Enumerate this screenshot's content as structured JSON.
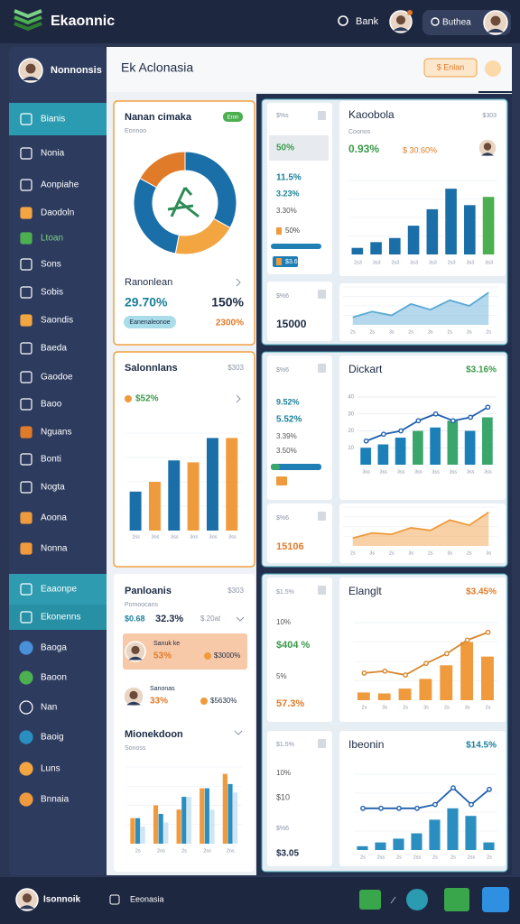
{
  "topbar": {
    "logo": "Ekaonnic",
    "search": "Bank",
    "account": "Buthea"
  },
  "sidebar": {
    "profile": "Nonnonsis",
    "items": [
      "Bianis",
      "Nonia",
      "Aonpiahe",
      "Daodoln",
      "Ltoan",
      "Sons",
      "Sobis",
      "Saondis",
      "Baeda",
      "Gaodoe",
      "Baoo",
      "Nguans",
      "Bonti",
      "Nogta",
      "Aoona",
      "Nonna"
    ],
    "section": [
      "Eaaonpe",
      "Ekonenns"
    ],
    "more": [
      "Baoga",
      "Baoon",
      "Nan",
      "Baoig",
      "Luns",
      "Bnnaia"
    ]
  },
  "header": {
    "title": "Ek Aclonasia",
    "button": "$ Enlan"
  },
  "donut_card": {
    "title": "Nanan cimaka",
    "badge": "Eron",
    "subtitle": "Eonnoo",
    "chart": {
      "type": "donut",
      "values": [
        33,
        20,
        30,
        17
      ],
      "colors": [
        "#1b6fa8",
        "#f2a541",
        "#1b6fa8",
        "#e07b2a"
      ]
    },
    "label": "Ranonlean",
    "stat1": "29.70%",
    "stat2": "150%",
    "pill": "Eanenaleonoe",
    "stat3": "2300%"
  },
  "bar_card": {
    "title": "Salonnlans",
    "corner": "$303",
    "stat": "$52%",
    "chart": {
      "type": "bar",
      "categories": [
        "2ss",
        "3os",
        "3ss",
        "3os",
        "3os",
        "3ss"
      ],
      "series": [
        {
          "style": "bar",
          "values": [
            40,
            50,
            72,
            70,
            95,
            95
          ],
          "colors": [
            "#1b6fa8",
            "#ef9a3c",
            "#1b6fa8",
            "#ef9a3c",
            "#1b6fa8",
            "#ef9a3c"
          ]
        }
      ],
      "ylim": [
        0,
        100
      ]
    }
  },
  "list_card": {
    "title": "Panloanis",
    "corner": "$303",
    "subtitle": "Pomoocans",
    "row": [
      "$0.68",
      "32.3%",
      "$.20at"
    ],
    "people": [
      {
        "name": "Sanuk ke",
        "stat": "53%",
        "value": "$3000%"
      },
      {
        "name": "Sanonas",
        "stat": "33%",
        "value": "$5630%"
      }
    ],
    "chart_title": "Mionekdoon",
    "chart_subtitle": "Sonoss",
    "chart": {
      "type": "bar",
      "categories": [
        "2s",
        "2os",
        "2s",
        "2ss",
        "2os"
      ],
      "series": [
        {
          "style": "bar",
          "color": "#ef9a3c",
          "values": [
            30,
            45,
            40,
            65,
            82
          ]
        },
        {
          "style": "bar",
          "color": "#2a8fc0",
          "values": [
            30,
            35,
            55,
            65,
            70
          ]
        },
        {
          "style": "bar",
          "color": "#cfe6f2",
          "values": [
            20,
            25,
            55,
            40,
            60
          ]
        }
      ],
      "ylim": [
        0,
        90
      ]
    }
  },
  "panels": [
    {
      "left_top": [
        "$%s",
        "50%",
        "11.5%",
        "3.23%",
        "3.30%",
        "50%",
        "$3.6"
      ],
      "left_bottom": [
        "$%6",
        "15000"
      ],
      "charts": [
        {
          "title": "Kaoobola",
          "corner": "$303",
          "subtitle": "Coonos",
          "stats": [
            "0.93%",
            "$ 30.60%"
          ],
          "chart": {
            "type": "bar",
            "categories": [
              "2s3",
              "3s3",
              "2s3",
              "3s3",
              "3s3",
              "2s3",
              "3s3",
              "3s3"
            ],
            "series": [
              {
                "style": "bar",
                "values": [
                  8,
                  15,
                  20,
                  35,
                  55,
                  80,
                  60,
                  70
                ],
                "colors": [
                  "#1b6fa8",
                  "#1b6fa8",
                  "#1b6fa8",
                  "#1b6fa8",
                  "#1b6fa8",
                  "#1b6fa8",
                  "#1b6fa8",
                  "#4caf50"
                ]
              }
            ],
            "ylim": [
              0,
              90
            ]
          }
        },
        {
          "chart": {
            "type": "area",
            "categories": [
              "2s",
              "2s",
              "3s",
              "2s",
              "3s",
              "2s",
              "3s",
              "2s"
            ],
            "series": [
              {
                "style": "area",
                "color": "#5aa9d6",
                "values": [
                  8,
                  14,
                  10,
                  22,
                  16,
                  26,
                  20,
                  34
                ]
              }
            ],
            "ylim": [
              0,
              40
            ]
          }
        }
      ]
    },
    {
      "left_top": [
        "$%6",
        "9.52%",
        "5.52%",
        "3.39%",
        "3.50%"
      ],
      "left_bottom": [
        "$%6",
        "15106"
      ],
      "charts": [
        {
          "title": "Dickart",
          "corner": "$3.16%",
          "chart": {
            "type": "combo",
            "categories": [
              "3ss",
              "3ss",
              "3ss",
              "3ss",
              "3ss",
              "3ss",
              "3ss",
              "3ss"
            ],
            "series": [
              {
                "style": "bar",
                "values": [
                  10,
                  12,
                  16,
                  20,
                  22,
                  26,
                  20,
                  28
                ],
                "colors": [
                  "#1b7fb8",
                  "#1b7fb8",
                  "#1b7fb8",
                  "#3aa66b",
                  "#1b7fb8",
                  "#3aa66b",
                  "#1b7fb8",
                  "#3aa66b"
                ]
              },
              {
                "style": "line",
                "color": "#1f5fb0",
                "markers": true,
                "values": [
                  14,
                  18,
                  20,
                  26,
                  30,
                  26,
                  28,
                  34
                ]
              }
            ],
            "ylim": [
              0,
              40
            ],
            "yticks": [
              10,
              20,
              30,
              40
            ]
          }
        },
        {
          "chart": {
            "type": "area",
            "categories": [
              "2s",
              "3s",
              "2s",
              "3s",
              "2s",
              "3s",
              "2s",
              "3s"
            ],
            "series": [
              {
                "style": "area",
                "color": "#ef9a3c",
                "values": [
                  6,
                  10,
                  9,
                  14,
                  12,
                  20,
                  16,
                  26
                ]
              }
            ],
            "ylim": [
              0,
              30
            ]
          }
        }
      ]
    },
    {
      "left_top": [
        "$1.5%",
        "10%",
        "$404 %",
        "5%",
        "57.3%"
      ],
      "left_bottom": [
        "$1.5%",
        "10%",
        "$10",
        "$%6",
        "$3.05"
      ],
      "charts": [
        {
          "title": "Elanglt",
          "corner": "$3.45%",
          "chart": {
            "type": "combo",
            "categories": [
              "2s",
              "3s",
              "2s",
              "3s",
              "2s",
              "3s",
              "2s"
            ],
            "series": [
              {
                "style": "bar",
                "color": "#ef9a3c",
                "values": [
                  8,
                  7,
                  12,
                  22,
                  36,
                  60,
                  45
                ]
              },
              {
                "style": "line",
                "color": "#d8862c",
                "markers": true,
                "values": [
                  28,
                  30,
                  26,
                  38,
                  48,
                  62,
                  70
                ]
              }
            ],
            "ylim": [
              0,
              80
            ]
          }
        },
        {
          "title": "Ibeonin",
          "corner": "$14.5%",
          "chart": {
            "type": "combo",
            "categories": [
              "2s",
              "2ss",
              "2s",
              "2ss",
              "2s",
              "2s",
              "2ss",
              "2s"
            ],
            "series": [
              {
                "style": "bar",
                "color": "#2a8fc0",
                "values": [
                  5,
                  10,
                  15,
                  22,
                  40,
                  55,
                  45,
                  10
                ]
              },
              {
                "style": "line",
                "color": "#1f5fb0",
                "markers": true,
                "values": [
                  55,
                  55,
                  55,
                  55,
                  60,
                  82,
                  60,
                  80
                ]
              }
            ],
            "ylim": [
              0,
              100
            ]
          }
        }
      ]
    }
  ],
  "bottombar": {
    "user": "Isonnoik",
    "label": "Eeonasia"
  }
}
